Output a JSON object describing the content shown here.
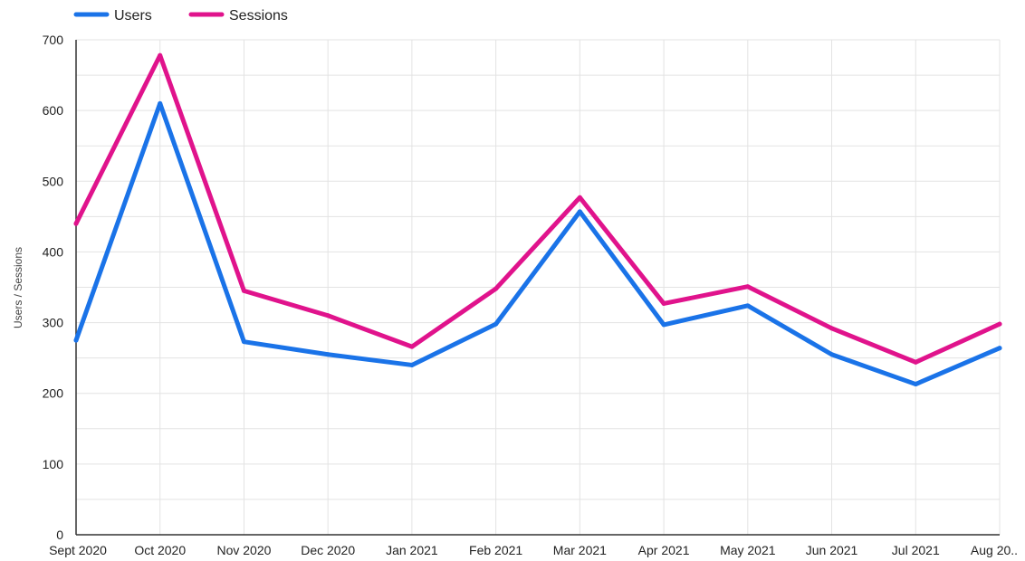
{
  "chart_data": {
    "type": "line",
    "title": "",
    "xlabel": "",
    "ylabel": "Users / Sessions",
    "ylim": [
      0,
      700
    ],
    "yticks": [
      0,
      100,
      200,
      300,
      400,
      500,
      600,
      700
    ],
    "grid": true,
    "legend_position": "top-left",
    "categories": [
      "Sept 2020",
      "Oct 2020",
      "Nov 2020",
      "Dec 2020",
      "Jan 2021",
      "Feb 2021",
      "Mar 2021",
      "Apr 2021",
      "May 2021",
      "Jun 2021",
      "Jul 2021",
      "Aug 20.."
    ],
    "series": [
      {
        "name": "Users",
        "color": "#1a73e8",
        "values": [
          275,
          610,
          273,
          255,
          240,
          298,
          457,
          297,
          324,
          255,
          213,
          264
        ]
      },
      {
        "name": "Sessions",
        "color": "#e0138c",
        "values": [
          440,
          678,
          345,
          310,
          266,
          348,
          477,
          327,
          351,
          292,
          244,
          298
        ]
      }
    ]
  }
}
